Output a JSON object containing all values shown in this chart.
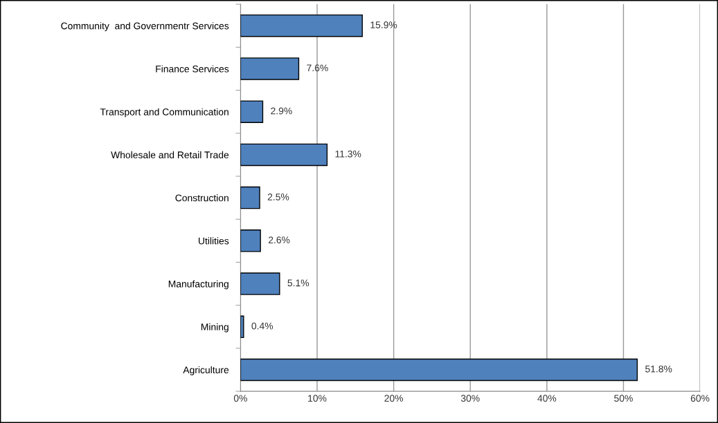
{
  "chart_data": {
    "type": "bar",
    "orientation": "horizontal",
    "categories": [
      "Community  and Governmentr Services",
      "Finance Services",
      "Transport and Communication",
      "Wholesale and Retail Trade",
      "Construction",
      "Utilities",
      "Manufacturing",
      "Mining",
      "Agriculture"
    ],
    "values": [
      15.9,
      7.6,
      2.9,
      11.3,
      2.5,
      2.6,
      5.1,
      0.4,
      51.8
    ],
    "value_labels": [
      "15.9%",
      "7.6%",
      "2.9%",
      "11.3%",
      "2.5%",
      "2.6%",
      "5.1%",
      "0.4%",
      "51.8%"
    ],
    "color": "#4f81bd",
    "xlim": [
      0,
      60
    ],
    "xticks": [
      {
        "value": 0,
        "label": "0%"
      },
      {
        "value": 10,
        "label": "10%"
      },
      {
        "value": 20,
        "label": "20%"
      },
      {
        "value": 30,
        "label": "30%"
      },
      {
        "value": 40,
        "label": "40%"
      },
      {
        "value": 50,
        "label": "50%"
      },
      {
        "value": 60,
        "label": "60%"
      }
    ],
    "grid": "x",
    "legend": false
  }
}
